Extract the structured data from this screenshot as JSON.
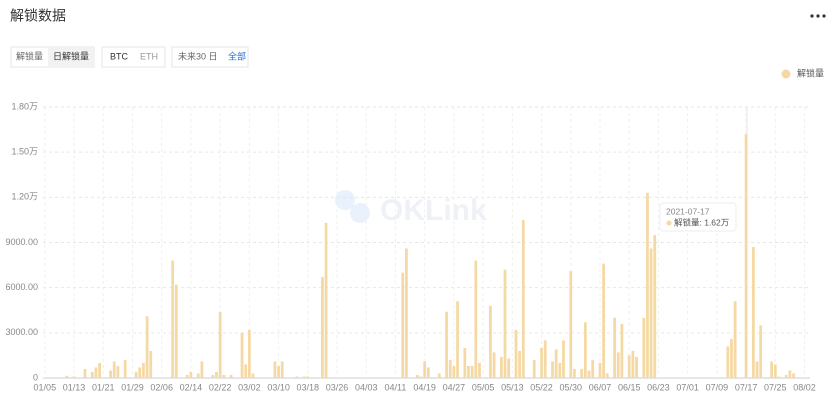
{
  "ui": {
    "title": "解锁数据",
    "tabs_metric": [
      "解锁量",
      "日解锁量"
    ],
    "tabs_coin": [
      "BTC",
      "ETH"
    ],
    "tabs_range": [
      "未来30 日",
      "全部"
    ],
    "watermark": "OKLink"
  },
  "chart_data": {
    "type": "bar",
    "categories": [
      "01/05",
      null,
      null,
      null,
      null,
      null,
      null,
      null,
      "01/13",
      null,
      null,
      null,
      null,
      null,
      null,
      null,
      "01/21",
      null,
      null,
      null,
      null,
      null,
      null,
      null,
      "01/29",
      null,
      null,
      null,
      null,
      null,
      null,
      null,
      "02/06",
      null,
      null,
      null,
      null,
      null,
      null,
      null,
      "02/14",
      null,
      null,
      null,
      null,
      null,
      null,
      null,
      "02/22",
      null,
      null,
      null,
      null,
      null,
      null,
      null,
      "03/02",
      null,
      null,
      null,
      null,
      null,
      null,
      null,
      "03/10",
      null,
      null,
      null,
      null,
      null,
      null,
      null,
      "03/18",
      null,
      null,
      null,
      null,
      null,
      null,
      null,
      "03/26",
      null,
      null,
      null,
      null,
      null,
      null,
      null,
      "04/03",
      null,
      null,
      null,
      null,
      null,
      null,
      null,
      "04/11",
      null,
      null,
      null,
      null,
      null,
      null,
      null,
      "04/19",
      null,
      null,
      null,
      null,
      null,
      null,
      null,
      "04/27",
      null,
      null,
      null,
      null,
      null,
      null,
      null,
      "05/05",
      null,
      null,
      null,
      null,
      null,
      null,
      null,
      "05/13",
      null,
      null,
      null,
      null,
      null,
      null,
      null,
      "05/22",
      null,
      null,
      null,
      null,
      null,
      null,
      null,
      "05/30",
      null,
      null,
      null,
      null,
      null,
      null,
      null,
      "06/07",
      null,
      null,
      null,
      null,
      null,
      null,
      null,
      "06/15",
      null,
      null,
      null,
      null,
      null,
      null,
      null,
      "06/23",
      null,
      null,
      null,
      null,
      null,
      null,
      null,
      "07/01",
      null,
      null,
      null,
      null,
      null,
      null,
      null,
      "07/09",
      null,
      null,
      null,
      null,
      null,
      null,
      null,
      "07/17",
      null,
      null,
      null,
      null,
      null,
      null,
      null,
      "07/25",
      null,
      null,
      null,
      null,
      null,
      null,
      null,
      "08/02",
      null
    ],
    "series": [
      {
        "name": "解锁量",
        "color": "#f5d9a4",
        "values": [
          0,
          0,
          0,
          0,
          0,
          0,
          150,
          0,
          100,
          0,
          0,
          600,
          0,
          400,
          700,
          1000,
          0,
          0,
          500,
          1100,
          800,
          0,
          1200,
          0,
          0,
          400,
          700,
          1000,
          4100,
          1800,
          0,
          0,
          0,
          0,
          0,
          7800,
          6200,
          0,
          0,
          200,
          400,
          0,
          300,
          1100,
          0,
          0,
          200,
          400,
          4400,
          200,
          0,
          200,
          0,
          0,
          3000,
          900,
          3200,
          300,
          0,
          0,
          0,
          0,
          0,
          1100,
          800,
          1100,
          0,
          0,
          0,
          100,
          0,
          100,
          100,
          0,
          0,
          0,
          6700,
          10300,
          0,
          0,
          0,
          0,
          0,
          0,
          0,
          0,
          0,
          0,
          0,
          0,
          0,
          0,
          0,
          0,
          0,
          0,
          0,
          0,
          7000,
          8600,
          0,
          0,
          200,
          100,
          1100,
          700,
          0,
          0,
          300,
          0,
          4400,
          1200,
          800,
          5100,
          0,
          2000,
          800,
          800,
          7800,
          1000,
          0,
          0,
          4800,
          1700,
          0,
          1400,
          7200,
          1300,
          0,
          3200,
          1800,
          10500,
          0,
          0,
          1200,
          0,
          2000,
          2500,
          0,
          1100,
          1900,
          1000,
          2500,
          0,
          7100,
          600,
          0,
          600,
          3700,
          500,
          1200,
          0,
          1000,
          7600,
          300,
          0,
          4000,
          1700,
          3600,
          0,
          1500,
          1800,
          1400,
          0,
          4000,
          12300,
          8600,
          9500,
          0,
          0,
          0,
          0,
          0,
          0,
          0,
          0,
          0,
          0,
          0,
          0,
          0,
          0,
          0,
          0,
          0,
          0,
          0,
          2100,
          2600,
          5100,
          0,
          0,
          16200,
          0,
          8700,
          1100,
          3500,
          0,
          0,
          1100,
          900,
          100,
          0,
          200,
          500,
          300,
          0,
          0,
          0,
          0
        ]
      }
    ],
    "ylim": [
      0,
      18000
    ],
    "yticks": [
      0,
      {
        "value": 3000,
        "label": "3000.00"
      },
      {
        "value": 6000,
        "label": "6000.00"
      },
      {
        "value": 9000,
        "label": "9000.00"
      },
      {
        "value": 12000,
        "label": "1.20万"
      },
      {
        "value": 15000,
        "label": "1.50万"
      },
      {
        "value": 18000,
        "label": "1.80万"
      }
    ],
    "grid": true,
    "legend": "top-right",
    "tooltip": {
      "title": "2021-07-17",
      "label": "解锁量: 1.62万"
    }
  }
}
